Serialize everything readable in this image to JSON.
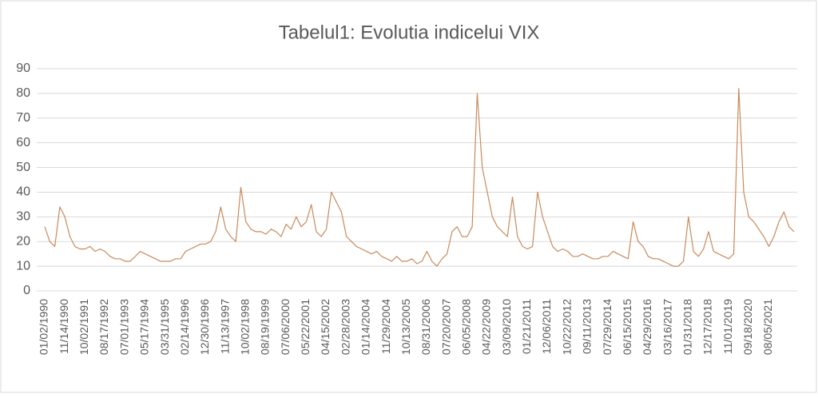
{
  "chart_data": {
    "type": "line",
    "title": "Tabelul1: Evolutia indicelui VIX",
    "categories": [
      "01/02/1990",
      null,
      null,
      null,
      "11/14/1990",
      null,
      null,
      null,
      "10/02/1991",
      null,
      null,
      null,
      "08/17/1992",
      null,
      null,
      null,
      "07/01/1993",
      null,
      null,
      null,
      "05/17/1994",
      null,
      null,
      null,
      "03/31/1995",
      null,
      null,
      null,
      "02/14/1996",
      null,
      null,
      null,
      "12/30/1996",
      null,
      null,
      null,
      "11/13/1997",
      null,
      null,
      null,
      "10/02/1998",
      null,
      null,
      null,
      "08/19/1999",
      null,
      null,
      null,
      "07/06/2000",
      null,
      null,
      null,
      "05/22/2001",
      null,
      null,
      null,
      "04/15/2002",
      null,
      null,
      null,
      "02/28/2003",
      null,
      null,
      null,
      "01/14/2004",
      null,
      null,
      null,
      "11/29/2004",
      null,
      null,
      null,
      "10/13/2005",
      null,
      null,
      null,
      "08/31/2006",
      null,
      null,
      null,
      "07/20/2007",
      null,
      null,
      null,
      "06/05/2008",
      null,
      null,
      null,
      "04/22/2009",
      null,
      null,
      null,
      "03/09/2010",
      null,
      null,
      null,
      "01/21/2011",
      null,
      null,
      null,
      "12/06/2011",
      null,
      null,
      null,
      "10/22/2012",
      null,
      null,
      null,
      "09/11/2013",
      null,
      null,
      null,
      "07/29/2014",
      null,
      null,
      null,
      "06/15/2015",
      null,
      null,
      null,
      "04/29/2016",
      null,
      null,
      null,
      "03/16/2017",
      null,
      null,
      null,
      "01/31/2018",
      null,
      null,
      null,
      "12/17/2018",
      null,
      null,
      null,
      "11/01/2019",
      null,
      null,
      null,
      "09/18/2020",
      null,
      null,
      null,
      "08/05/2021",
      null,
      null,
      null,
      null,
      null
    ],
    "series": [
      {
        "name": "VIX",
        "color": "#c98a5c",
        "values": [
          26,
          20,
          18,
          34,
          30,
          22,
          18,
          17,
          17,
          18,
          16,
          17,
          16,
          14,
          13,
          13,
          12,
          12,
          14,
          16,
          15,
          14,
          13,
          12,
          12,
          12,
          13,
          13,
          16,
          17,
          18,
          19,
          19,
          20,
          24,
          34,
          25,
          22,
          20,
          42,
          28,
          25,
          24,
          24,
          23,
          25,
          24,
          22,
          27,
          25,
          30,
          26,
          28,
          35,
          24,
          22,
          25,
          40,
          36,
          32,
          22,
          20,
          18,
          17,
          16,
          15,
          16,
          14,
          13,
          12,
          14,
          12,
          12,
          13,
          11,
          12,
          16,
          12,
          10,
          13,
          15,
          24,
          26,
          22,
          22,
          26,
          80,
          50,
          40,
          30,
          26,
          24,
          22,
          38,
          22,
          18,
          17,
          18,
          40,
          30,
          24,
          18,
          16,
          17,
          16,
          14,
          14,
          15,
          14,
          13,
          13,
          14,
          14,
          16,
          15,
          14,
          13,
          28,
          20,
          18,
          14,
          13,
          13,
          12,
          11,
          10,
          10,
          12,
          30,
          16,
          14,
          17,
          24,
          16,
          15,
          14,
          13,
          15,
          82,
          40,
          30,
          28,
          25,
          22,
          18,
          22,
          28,
          32,
          26,
          24
        ]
      }
    ],
    "ylim": [
      0,
      90
    ],
    "yticks": [
      0,
      10,
      20,
      30,
      40,
      50,
      60,
      70,
      80,
      90
    ],
    "grid": true
  }
}
